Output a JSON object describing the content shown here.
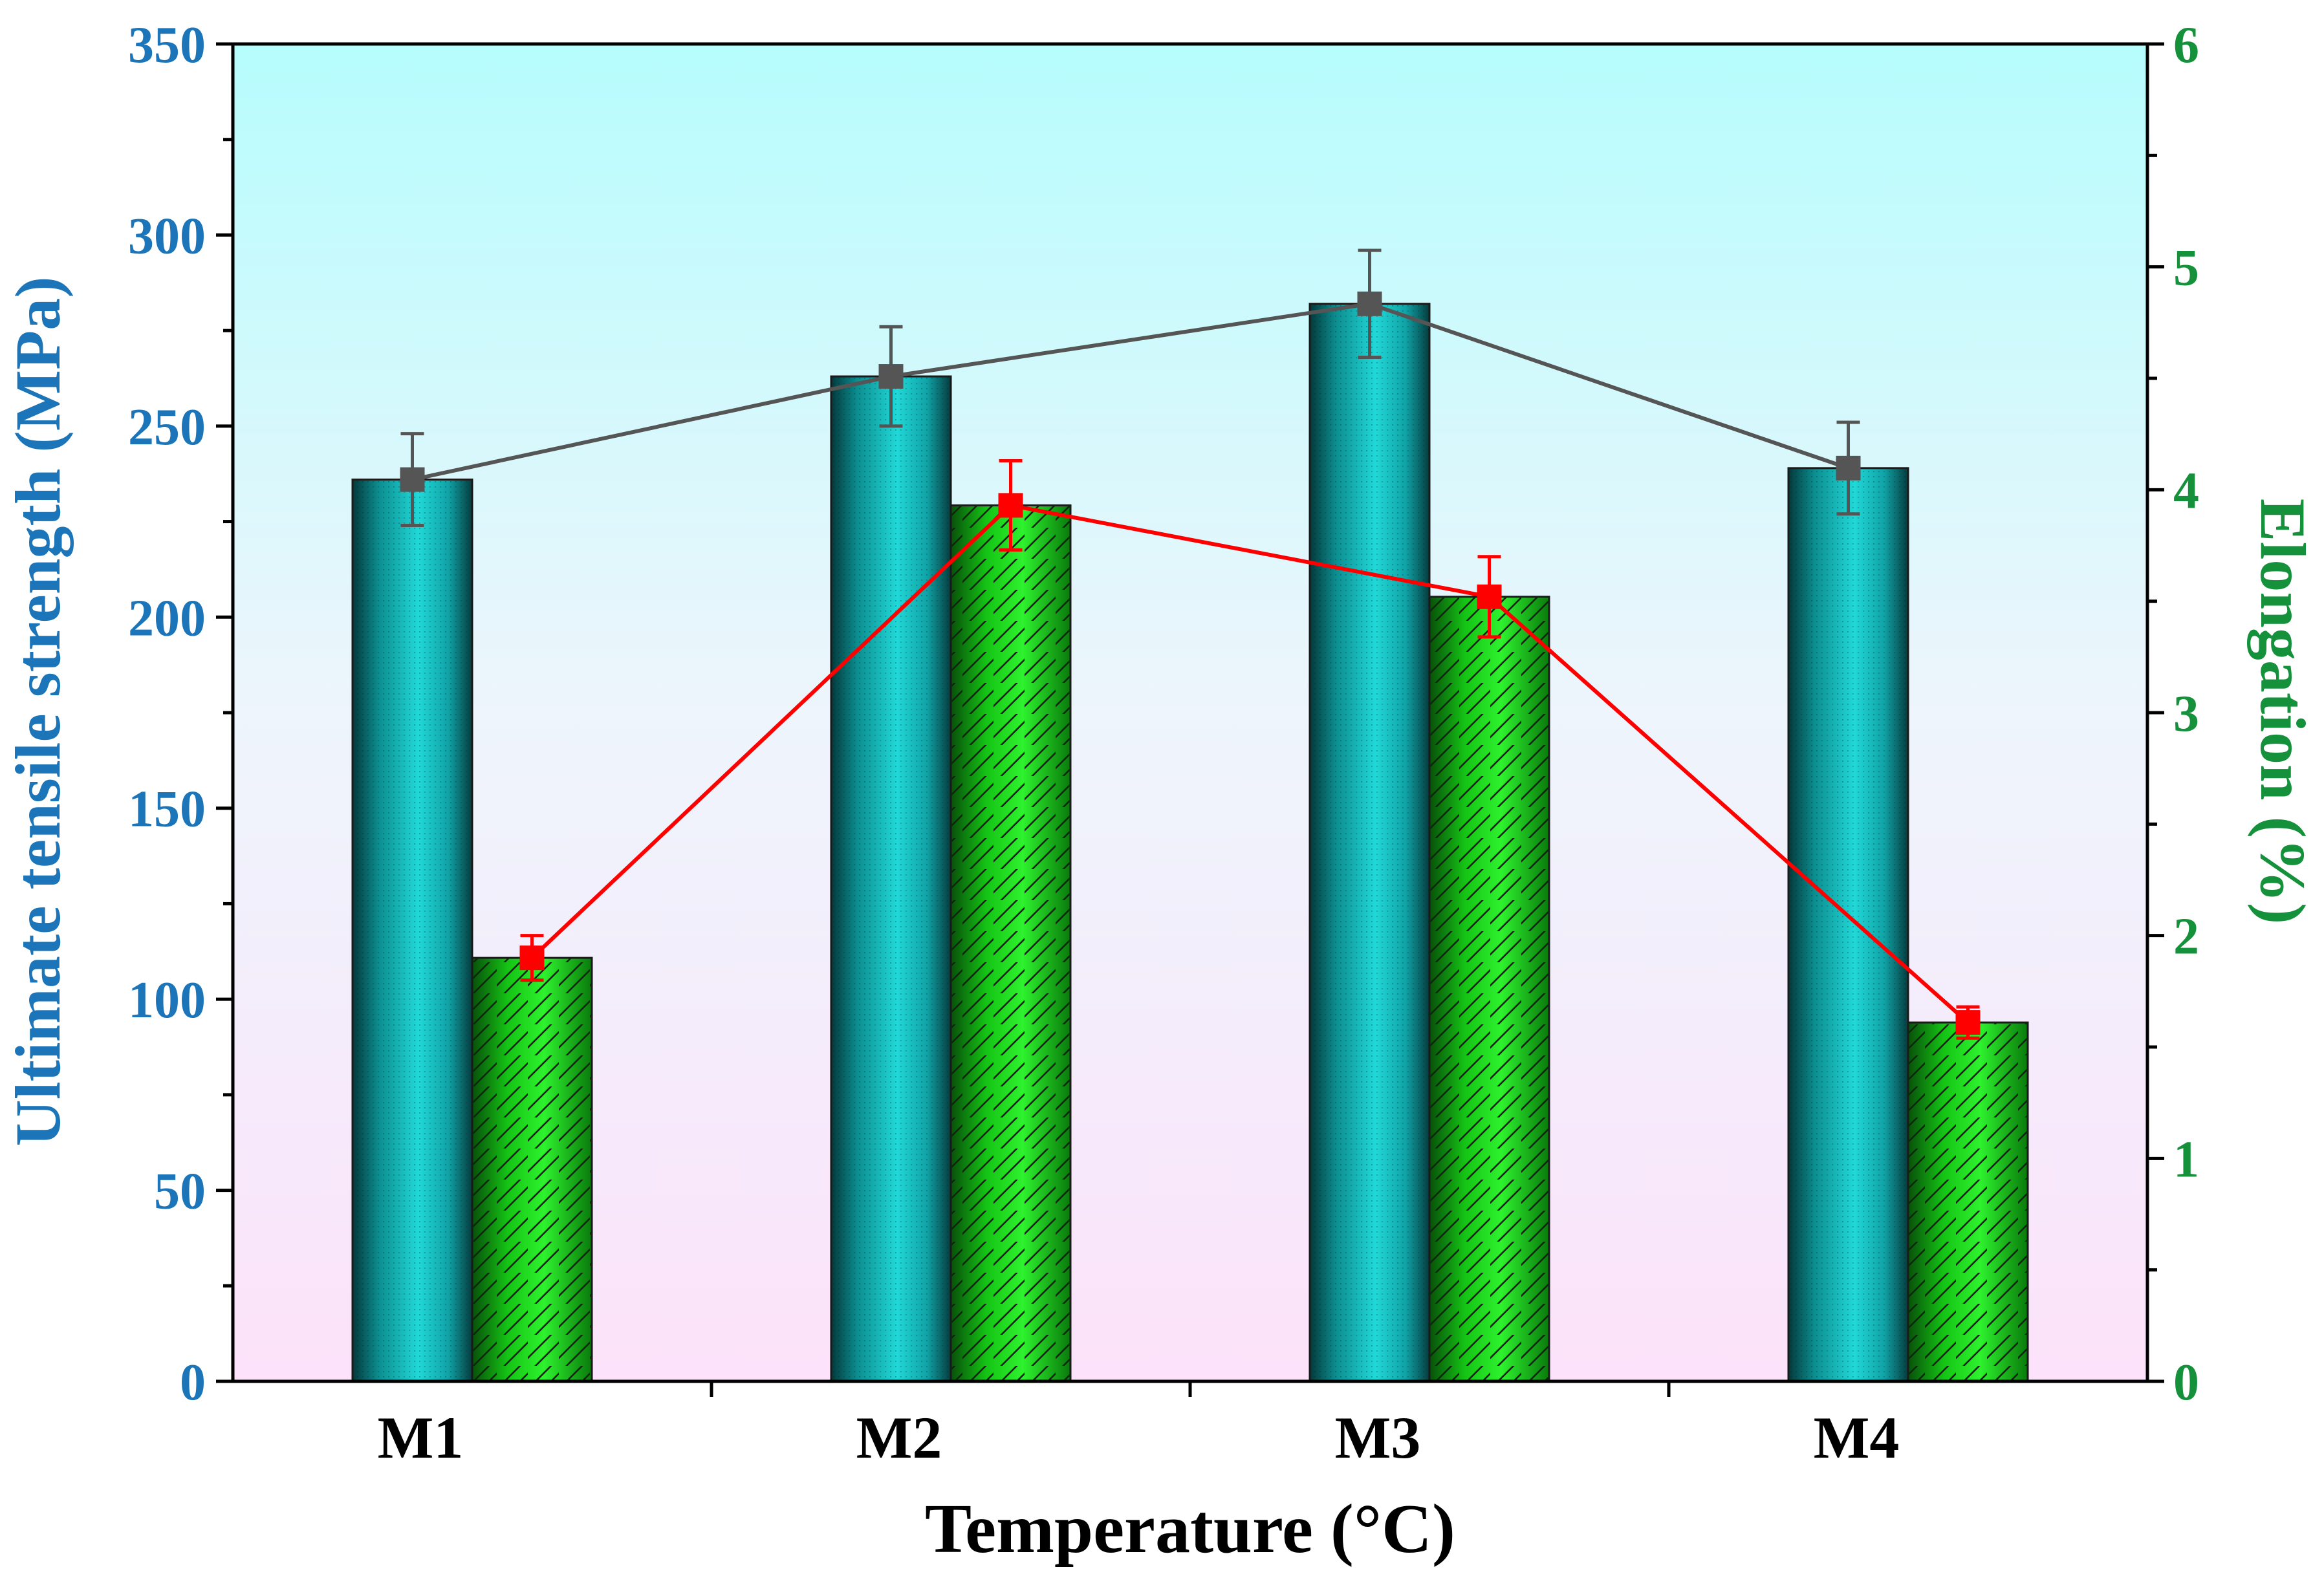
{
  "chart_data": {
    "type": "bar",
    "title": "",
    "xlabel": "Temperature (°C)",
    "ylabel": "Ultimate tensile strength (MPa)",
    "ylabel_right": "Elongation (%)",
    "categories": [
      "M1",
      "M2",
      "M3",
      "M4"
    ],
    "ylim": [
      0,
      350
    ],
    "ylim_right": [
      0,
      6
    ],
    "yticks": [
      "0",
      "50",
      "100",
      "150",
      "200",
      "250",
      "300",
      "350"
    ],
    "yticks_right": [
      "0",
      "1",
      "2",
      "3",
      "4",
      "5",
      "6"
    ],
    "grid": false,
    "series": [
      {
        "name": "Ultimate tensile strength",
        "axis": "left",
        "values": [
          236,
          263,
          282,
          239
        ],
        "errors": [
          12,
          13,
          14,
          12
        ],
        "bar_color": "#1cc4c4",
        "line_color": "#555555",
        "marker_color": "#555555"
      },
      {
        "name": "Elongation",
        "axis": "right",
        "values": [
          1.9,
          3.93,
          3.52,
          1.61
        ],
        "errors": [
          0.1,
          0.2,
          0.18,
          0.07
        ],
        "bar_color": "#22dd22",
        "line_color": "#ff0000",
        "marker_color": "#ff0000"
      }
    ],
    "colors": {
      "left_axis_text": "#1b75b8",
      "right_axis_text": "#15903b",
      "background_top": "#b6fdfd",
      "background_bottom": "#fce2fa"
    }
  }
}
